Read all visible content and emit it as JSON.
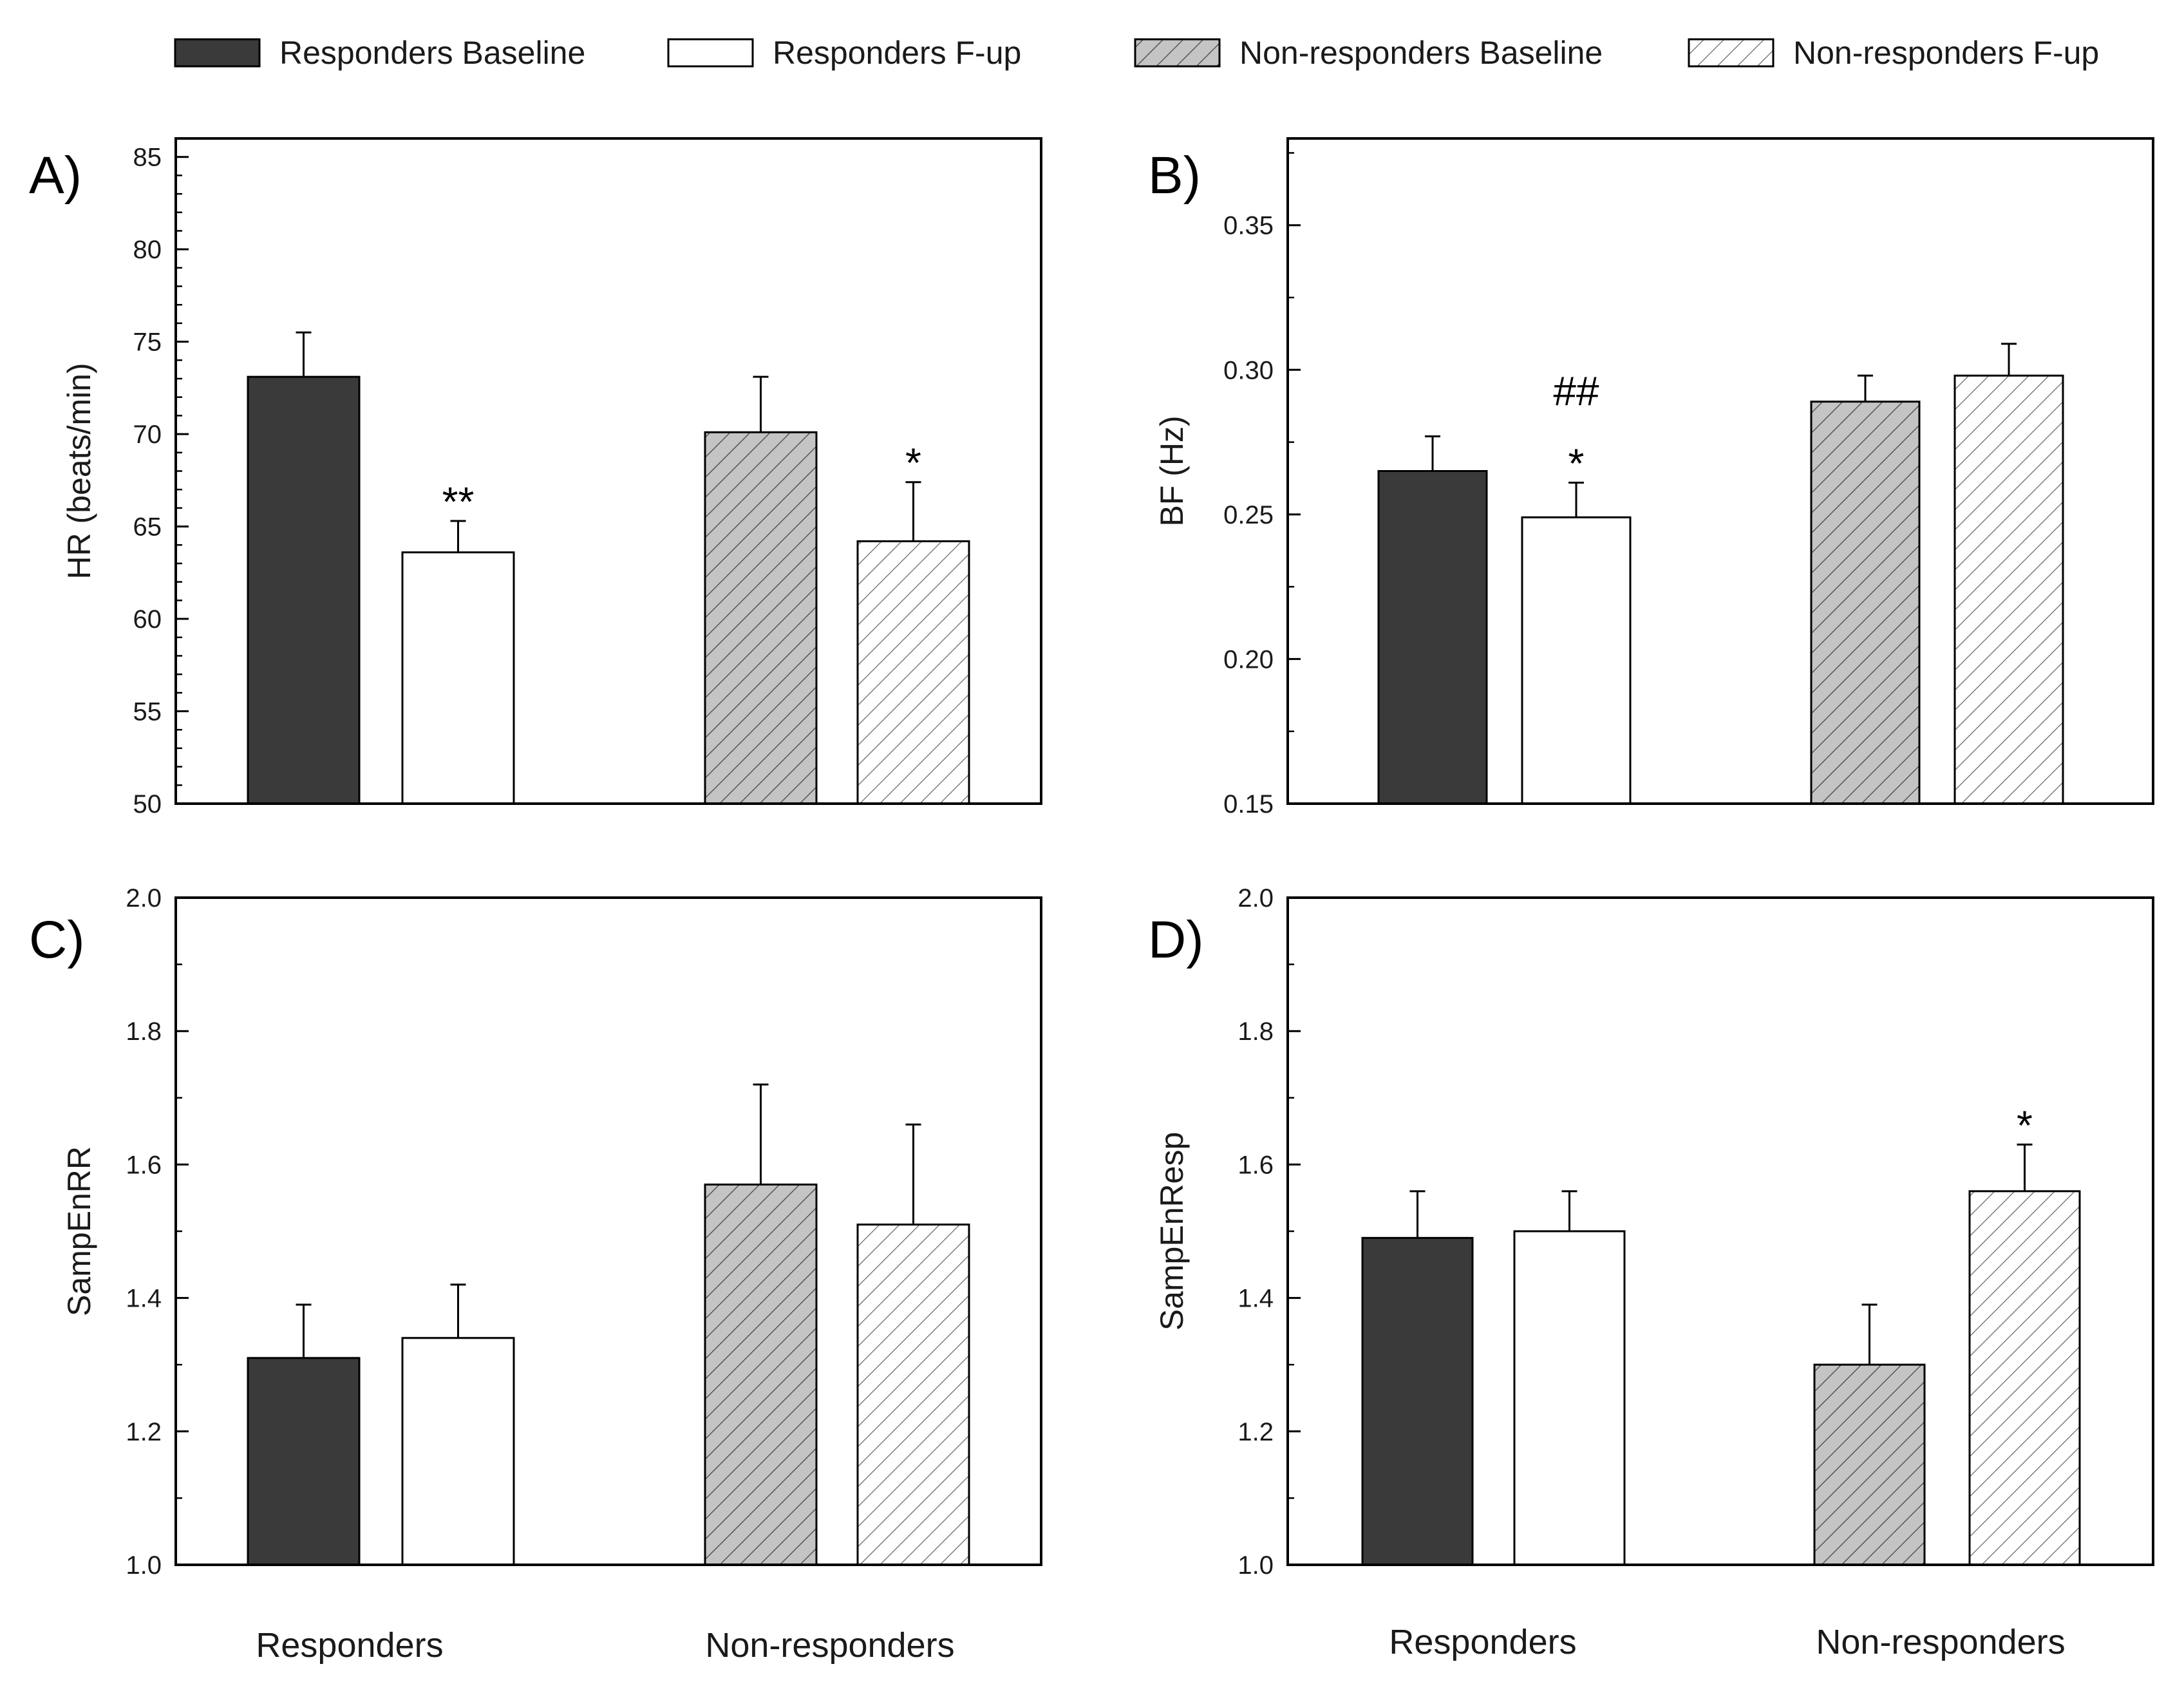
{
  "colors": {
    "responders_baseline": "#3a3a3a",
    "responders_fup": "#ffffff",
    "nonresponders_baseline": "#c4c4c4",
    "nonresponders_fup": "#ffffff",
    "hatch": "#555555",
    "axis": "#000000"
  },
  "legend": [
    {
      "label": "Responders Baseline",
      "style": "solid-dark"
    },
    {
      "label": "Responders F-up",
      "style": "white"
    },
    {
      "label": "Non-responders Baseline",
      "style": "hatch-gray"
    },
    {
      "label": "Non-responders F-up",
      "style": "hatch-white"
    }
  ],
  "group_labels": [
    "Responders",
    "Non-responders"
  ],
  "chart_data": [
    {
      "type": "bar",
      "panel": "A)",
      "ylabel": "HR (beats/min)",
      "ylim": [
        50,
        86
      ],
      "yticks": [
        "50",
        "55",
        "60",
        "65",
        "70",
        "75",
        "80",
        "85"
      ],
      "ytick_values": [
        50,
        55,
        60,
        65,
        70,
        75,
        80,
        85
      ],
      "minor_step": 1,
      "categories": [
        "Responders",
        "Non-responders"
      ],
      "series": [
        {
          "name": "Responders Baseline",
          "values": [
            73.1,
            null
          ],
          "errors": [
            2.4,
            null
          ]
        },
        {
          "name": "Responders F-up",
          "values": [
            63.6,
            null
          ],
          "errors": [
            1.7,
            null
          ]
        },
        {
          "name": "Non-responders Baseline",
          "values": [
            null,
            70.1
          ],
          "errors": [
            null,
            3.0
          ]
        },
        {
          "name": "Non-responders F-up",
          "values": [
            null,
            64.2
          ],
          "errors": [
            null,
            3.2
          ]
        }
      ],
      "annotations": [
        {
          "text": "**",
          "series": 1
        },
        {
          "text": "*",
          "series": 3
        }
      ]
    },
    {
      "type": "bar",
      "panel": "B)",
      "ylabel": "BF (Hz)",
      "ylim": [
        0.15,
        0.38
      ],
      "yticks": [
        "0.15",
        "0.20",
        "0.25",
        "0.30",
        "0.35"
      ],
      "ytick_values": [
        0.15,
        0.2,
        0.25,
        0.3,
        0.35
      ],
      "minor_step": 0.025,
      "categories": [
        "Responders",
        "Non-responders"
      ],
      "series": [
        {
          "name": "Responders Baseline",
          "values": [
            0.265,
            null
          ],
          "errors": [
            0.012,
            null
          ]
        },
        {
          "name": "Responders F-up",
          "values": [
            0.249,
            null
          ],
          "errors": [
            0.012,
            null
          ]
        },
        {
          "name": "Non-responders Baseline",
          "values": [
            null,
            0.289
          ],
          "errors": [
            null,
            0.009
          ]
        },
        {
          "name": "Non-responders F-up",
          "values": [
            null,
            0.298
          ],
          "errors": [
            null,
            0.011
          ]
        }
      ],
      "annotations": [
        {
          "text": "*",
          "series": 1
        },
        {
          "text": "##",
          "series": 1,
          "stack": 1
        }
      ]
    },
    {
      "type": "bar",
      "panel": "C)",
      "ylabel": "SampEnRR",
      "ylim": [
        1.0,
        2.0
      ],
      "yticks": [
        "1.0",
        "1.2",
        "1.4",
        "1.6",
        "1.8",
        "2.0"
      ],
      "ytick_values": [
        1.0,
        1.2,
        1.4,
        1.6,
        1.8,
        2.0
      ],
      "minor_step": 0.1,
      "categories": [
        "Responders",
        "Non-responders"
      ],
      "series": [
        {
          "name": "Responders Baseline",
          "values": [
            1.31,
            null
          ],
          "errors": [
            0.08,
            null
          ]
        },
        {
          "name": "Responders F-up",
          "values": [
            1.34,
            null
          ],
          "errors": [
            0.08,
            null
          ]
        },
        {
          "name": "Non-responders Baseline",
          "values": [
            null,
            1.57
          ],
          "errors": [
            null,
            0.15
          ]
        },
        {
          "name": "Non-responders F-up",
          "values": [
            null,
            1.51
          ],
          "errors": [
            null,
            0.15
          ]
        }
      ],
      "annotations": []
    },
    {
      "type": "bar",
      "panel": "D)",
      "ylabel": "SampEnResp",
      "ylim": [
        1.0,
        2.0
      ],
      "yticks": [
        "1.0",
        "1.2",
        "1.4",
        "1.6",
        "1.8",
        "2.0"
      ],
      "ytick_values": [
        1.0,
        1.2,
        1.4,
        1.6,
        1.8,
        2.0
      ],
      "minor_step": 0.1,
      "categories": [
        "Responders",
        "Non-responders"
      ],
      "series": [
        {
          "name": "Responders Baseline",
          "values": [
            1.49,
            null
          ],
          "errors": [
            0.07,
            null
          ]
        },
        {
          "name": "Responders F-up",
          "values": [
            1.5,
            null
          ],
          "errors": [
            0.06,
            null
          ]
        },
        {
          "name": "Non-responders Baseline",
          "values": [
            null,
            1.3
          ],
          "errors": [
            null,
            0.09
          ]
        },
        {
          "name": "Non-responders F-up",
          "values": [
            null,
            1.56
          ],
          "errors": [
            null,
            0.07
          ]
        }
      ],
      "annotations": [
        {
          "text": "*",
          "series": 3
        }
      ]
    }
  ]
}
